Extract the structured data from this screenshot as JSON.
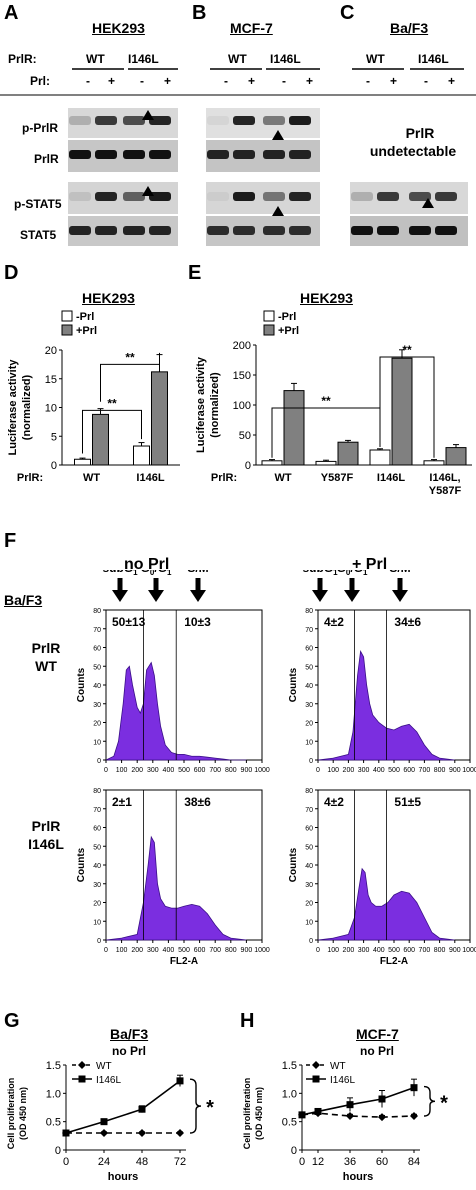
{
  "panelA": {
    "letter": "A",
    "cell": "HEK293",
    "pr_row": "PrlR:",
    "prl_row": "Prl:",
    "wt": "WT",
    "mut": "I146L",
    "minus": "-",
    "plus": "+",
    "rows": [
      "p-PrlR",
      "PrlR",
      "p-STAT5",
      "STAT5"
    ]
  },
  "panelB": {
    "letter": "B",
    "cell": "MCF-7",
    "wt": "WT",
    "mut": "I146L"
  },
  "panelC": {
    "letter": "C",
    "cell": "Ba/F3",
    "wt": "WT",
    "mut": "I146L",
    "note_line1": "PrlR",
    "note_line2": "undetectable"
  },
  "panelD": {
    "letter": "D",
    "cell": "HEK293",
    "legend": [
      "-Prl",
      "+Prl"
    ],
    "ylabel1": "Luciferase activity",
    "ylabel2": "(normalized)",
    "xrow": "PrlR:",
    "sig": "**",
    "chart_data": {
      "type": "bar",
      "categories": [
        "WT",
        "I146L"
      ],
      "series": [
        {
          "name": "-Prl",
          "values": [
            1,
            3.3
          ]
        },
        {
          "name": "+Prl",
          "values": [
            8.8,
            16.2
          ]
        }
      ],
      "errors": [
        [
          0.2,
          0.6
        ],
        [
          1.0,
          3.0
        ]
      ],
      "ylim": [
        0,
        20
      ],
      "yticks": [
        0,
        5,
        10,
        15,
        20
      ]
    }
  },
  "panelE": {
    "letter": "E",
    "cell": "HEK293",
    "legend": [
      "-Prl",
      "+Prl"
    ],
    "ylabel1": "Luciferase activity",
    "ylabel2": "(normalized)",
    "xrow": "PrlR:",
    "sig": "**",
    "cat_last_line1": "I146L,",
    "cat_last_line2": "Y587F",
    "chart_data": {
      "type": "bar",
      "categories": [
        "WT",
        "Y587F",
        "I146L",
        "I146L, Y587F"
      ],
      "series": [
        {
          "name": "-Prl",
          "values": [
            7,
            6,
            25,
            7
          ]
        },
        {
          "name": "+Prl",
          "values": [
            124,
            38,
            178,
            29
          ]
        }
      ],
      "errors": [
        [
          2,
          2,
          2,
          2
        ],
        [
          12,
          3,
          14,
          5
        ]
      ],
      "ylim": [
        0,
        200
      ],
      "yticks": [
        0,
        50,
        100,
        150,
        200
      ]
    }
  },
  "panelF": {
    "letter": "F",
    "cond_left": "no Prl",
    "cond_right": "+ Prl",
    "cell": "Ba/F3",
    "row1_line1": "PrlR",
    "row1_line2": "WT",
    "row2_line1": "PrlR",
    "row2_line2": "I146L",
    "phases": [
      "subG1",
      "G0/G1",
      "S/M"
    ],
    "ylabel": "Counts",
    "xlabel": "FL2-A",
    "chart_data": [
      {
        "type": "area",
        "name": "PrlR WT no Prl",
        "sub_g1": "50±13",
        "s_m": "10±3",
        "x": [
          0,
          50,
          80,
          110,
          130,
          150,
          170,
          200,
          220,
          240,
          260,
          290,
          310,
          330,
          350,
          380,
          420,
          460,
          500,
          550,
          600,
          650,
          700,
          750,
          800,
          900
        ],
        "y": [
          0,
          2,
          10,
          30,
          48,
          50,
          40,
          28,
          25,
          30,
          48,
          52,
          45,
          30,
          18,
          8,
          4,
          3,
          3,
          2,
          2,
          1.5,
          1,
          0.5,
          0,
          0
        ]
      },
      {
        "type": "area",
        "name": "PrlR WT + Prl",
        "sub_g1": "4±2",
        "s_m": "34±6",
        "x": [
          0,
          100,
          200,
          230,
          260,
          280,
          300,
          320,
          340,
          360,
          400,
          450,
          500,
          550,
          600,
          650,
          700,
          750,
          800,
          900
        ],
        "y": [
          0,
          1,
          3,
          15,
          45,
          58,
          55,
          40,
          30,
          24,
          20,
          17,
          16,
          18,
          19,
          15,
          8,
          3,
          1,
          0
        ]
      },
      {
        "type": "area",
        "name": "PrlR I146L no Prl",
        "sub_g1": "2±1",
        "s_m": "38±6",
        "x": [
          0,
          100,
          200,
          240,
          270,
          290,
          310,
          330,
          350,
          380,
          420,
          460,
          500,
          550,
          600,
          650,
          700,
          750,
          800,
          900
        ],
        "y": [
          0,
          1,
          3,
          20,
          40,
          55,
          52,
          30,
          22,
          18,
          17,
          17,
          18,
          19,
          18,
          14,
          8,
          3,
          1,
          0
        ]
      },
      {
        "type": "area",
        "name": "PrlR I146L + Prl",
        "sub_g1": "4±2",
        "s_m": "51±5",
        "x": [
          0,
          100,
          200,
          240,
          270,
          290,
          310,
          330,
          350,
          380,
          420,
          460,
          500,
          550,
          600,
          650,
          700,
          750,
          800,
          900
        ],
        "y": [
          0,
          1,
          3,
          12,
          28,
          38,
          36,
          24,
          20,
          18,
          18,
          20,
          24,
          26,
          25,
          20,
          12,
          4,
          1,
          0
        ]
      }
    ],
    "xticks": [
      0,
      100,
      200,
      300,
      400,
      500,
      600,
      700,
      800,
      900,
      1000
    ],
    "yticks": [
      0,
      10,
      20,
      30,
      40,
      50,
      60,
      70,
      80
    ]
  },
  "panelG": {
    "letter": "G",
    "cell": "Ba/F3",
    "sub": "no Prl",
    "ylabel1": "Cell proliferation",
    "ylabel2": "(OD 450 nm)",
    "xlabel": "hours",
    "sig": "*",
    "chart_data": {
      "type": "line",
      "x": [
        0,
        24,
        48,
        72
      ],
      "series": [
        {
          "name": "WT",
          "values": [
            0.3,
            0.3,
            0.3,
            0.3
          ]
        },
        {
          "name": "I146L",
          "values": [
            0.3,
            0.5,
            0.72,
            1.22
          ]
        }
      ],
      "errors": [
        [
          0.02,
          0.02,
          0.02,
          0.02
        ],
        [
          0.02,
          0.04,
          0.06,
          0.1
        ]
      ],
      "ylim": [
        0,
        1.5
      ],
      "yticks": [
        0,
        0.5,
        1,
        1.5
      ]
    }
  },
  "panelH": {
    "letter": "H",
    "cell": "MCF-7",
    "sub": "no Prl",
    "ylabel1": "Cell proliferation",
    "ylabel2": "(OD 450 nm)",
    "xlabel": "hours",
    "sig": "*",
    "chart_data": {
      "type": "line",
      "x": [
        0,
        12,
        36,
        60,
        84
      ],
      "series": [
        {
          "name": "WT",
          "values": [
            0.62,
            0.65,
            0.6,
            0.58,
            0.6
          ]
        },
        {
          "name": "I146L",
          "values": [
            0.62,
            0.68,
            0.8,
            0.9,
            1.1
          ]
        }
      ],
      "errors": [
        [
          0.02,
          0.03,
          0.03,
          0.03,
          0.03
        ],
        [
          0.02,
          0.04,
          0.12,
          0.15,
          0.15
        ]
      ],
      "ylim": [
        0,
        1.5
      ],
      "yticks": [
        0,
        0.5,
        1,
        1.5
      ]
    }
  }
}
